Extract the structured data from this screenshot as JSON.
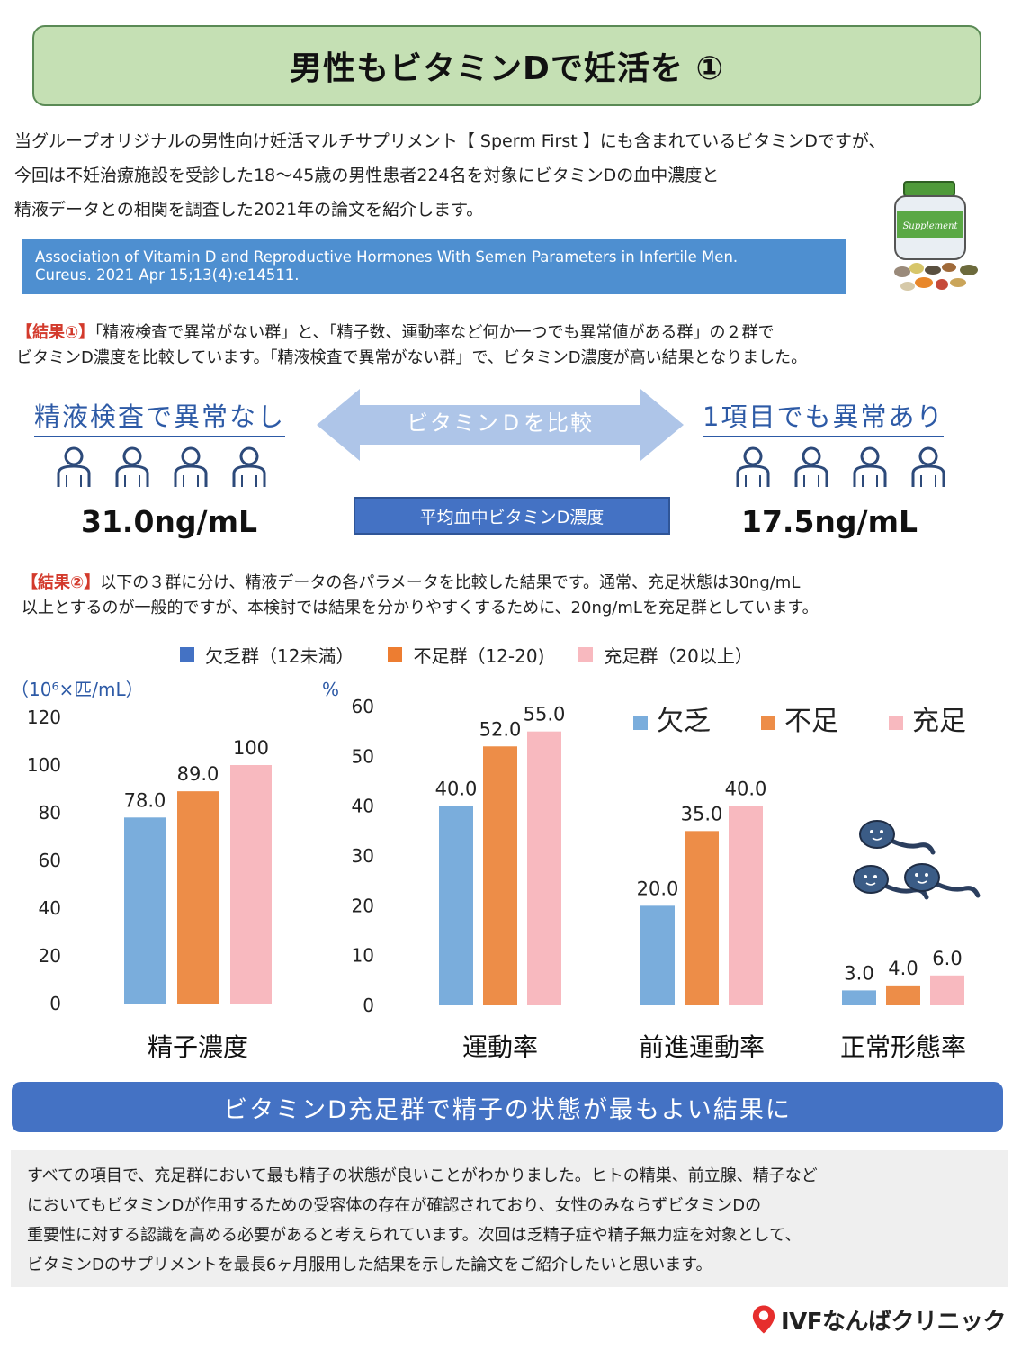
{
  "title": "男性もビタミンDで妊活を ①",
  "intro": [
    "当グループオリジナルの男性向け妊活マルチサプリメント【 Sperm First 】にも含まれているビタミンDですが、",
    "今回は不妊治療施設を受診した18～45歳の男性患者224名を対象にビタミンDの血中濃度と",
    "精液データとの相関を調査した2021年の論文を紹介します。"
  ],
  "citation": {
    "line1": "Association of Vitamin D and Reproductive Hormones With Semen Parameters in Infertile Men.",
    "line2": "Cureus. 2021 Apr 15;13(4):e14511."
  },
  "supplement_label": "Supplement",
  "result1": {
    "tag": "【結果①】",
    "line1": "「精液検査で異常がない群」と、「精子数、運動率など何か一つでも異常値がある群」の２群で",
    "line2": "ビタミンD濃度を比較しています。「精液検査で異常がない群」で、ビタミンD濃度が高い結果となりました。"
  },
  "comparison": {
    "left_label": "精液検査で異常なし",
    "arrow_label": "ビタミンＤを比較",
    "right_label": "1項目でも異常あり",
    "left_value": "31.0ng/mL",
    "center_label": "平均血中ビタミンD濃度",
    "right_value": "17.5ng/mL"
  },
  "result2": {
    "tag": "【結果②】",
    "line1": "以下の３群に分け、精液データの各パラメータを比較した結果です。通常、充足状態は30ng/mL",
    "line2": "以上とするのが一般的ですが、本検討では結果を分かりやすくするために、20ng/mLを充足群としています。"
  },
  "legend_top": [
    {
      "label": "欠乏群（12未満）",
      "color": "#4472c4"
    },
    {
      "label": "不足群（12-20)",
      "color": "#ed7d31"
    },
    {
      "label": "充足群（20以上）",
      "color": "#f8b9bf"
    }
  ],
  "chart_data": [
    {
      "type": "bar",
      "ylabel": "（10⁶×匹/mL）",
      "ylim": [
        0,
        120
      ],
      "yticks": [
        0,
        20,
        40,
        60,
        80,
        100,
        120
      ],
      "categories": [
        "精子濃度"
      ],
      "series": [
        {
          "name": "欠乏",
          "color": "#7aaddc",
          "values": [
            78.0
          ],
          "labels": [
            "78.0"
          ]
        },
        {
          "name": "不足",
          "color": "#ed8d48",
          "values": [
            89.0
          ],
          "labels": [
            "89.0"
          ]
        },
        {
          "name": "充足",
          "color": "#f8b9bf",
          "values": [
            100
          ],
          "labels": [
            "100"
          ]
        }
      ],
      "grid": false
    },
    {
      "type": "bar",
      "ylabel": "%",
      "ylim": [
        0,
        60
      ],
      "yticks": [
        0,
        10,
        20,
        30,
        40,
        50,
        60
      ],
      "categories": [
        "運動率",
        "前進運動率",
        "正常形態率"
      ],
      "series": [
        {
          "name": "欠乏",
          "color": "#7aaddc",
          "values": [
            40.0,
            20.0,
            3.0
          ],
          "labels": [
            "40.0",
            "20.0",
            "3.0"
          ]
        },
        {
          "name": "不足",
          "color": "#ed8d48",
          "values": [
            52.0,
            35.0,
            4.0
          ],
          "labels": [
            "52.0",
            "35.0",
            "4.0"
          ]
        },
        {
          "name": "充足",
          "color": "#f8b9bf",
          "values": [
            55.0,
            40.0,
            6.0
          ],
          "labels": [
            "55.0",
            "40.0",
            "6.0"
          ]
        }
      ],
      "legend": "top-right",
      "grid": false
    }
  ],
  "conclusion": "ビタミンD充足群で精子の状態が最もよい結果に",
  "summary": [
    "すべての項目で、充足群において最も精子の状態が良いことがわかりました。ヒトの精巣、前立腺、精子など",
    "においてもビタミンDが作用するための受容体の存在が確認されており、女性のみならずビタミンDの",
    "重要性に対する認識を高める必要があると考えられています。次回は乏精子症や精子無力症を対象として、",
    "ビタミンDのサプリメントを最長6ヶ月服用した結果を示した論文をご紹介したいと思います。"
  ],
  "footer": {
    "logo_text": "IVFなんばクリニック",
    "pin_color": "#e62e2d"
  }
}
